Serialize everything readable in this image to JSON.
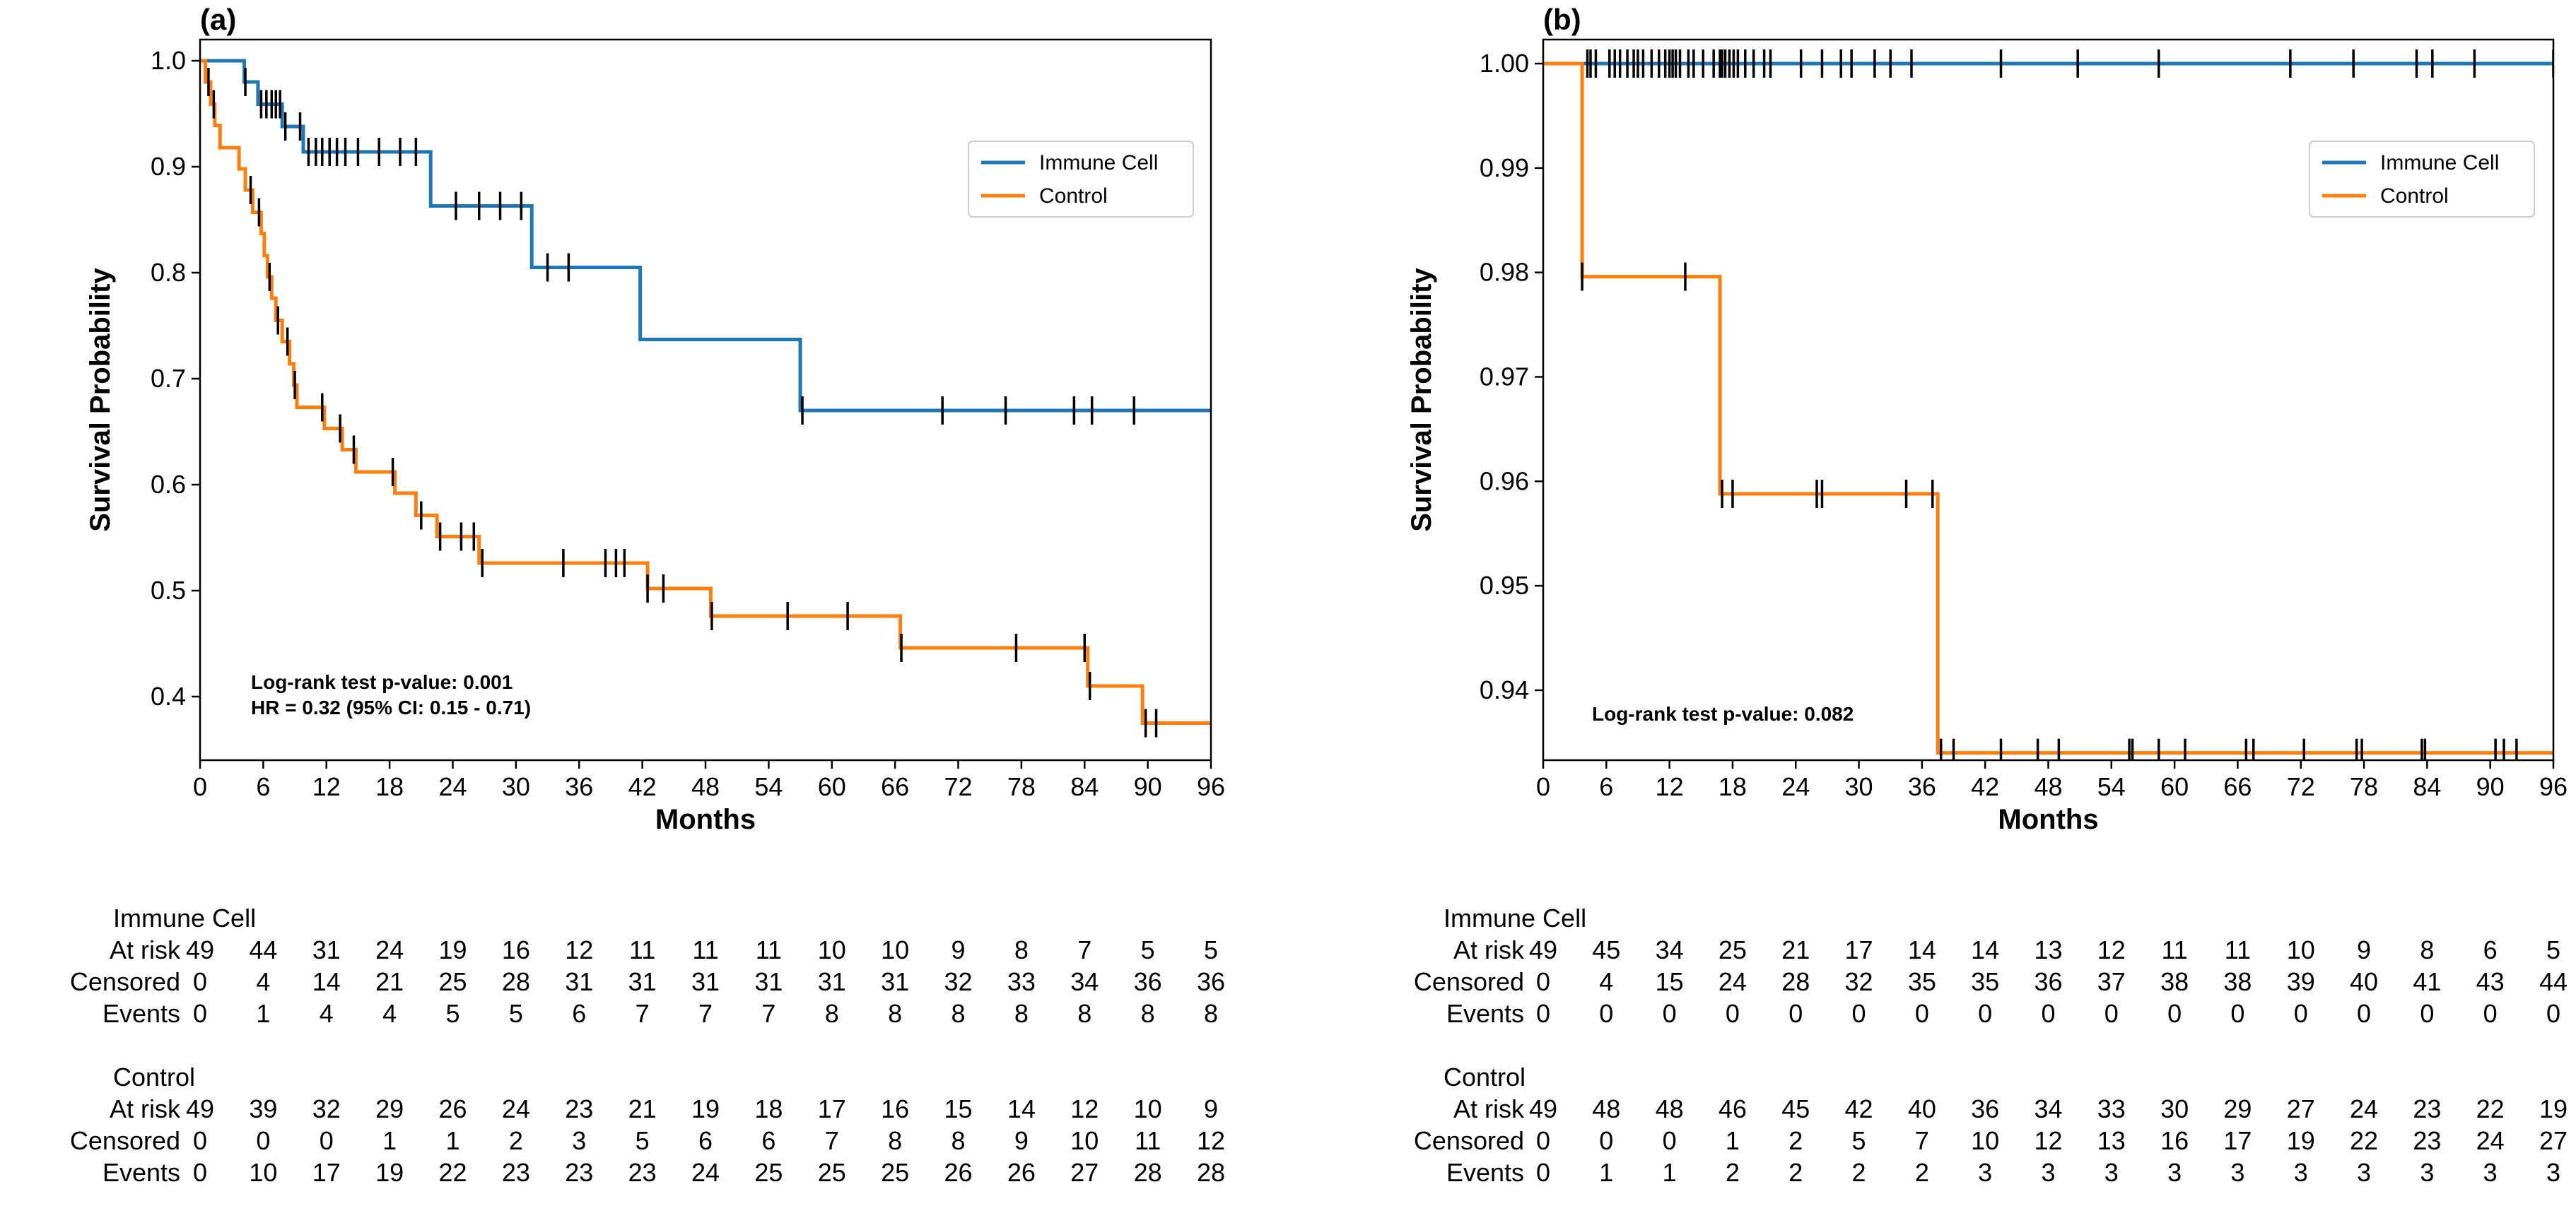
{
  "colors": {
    "immune": "#1f77b4",
    "control": "#ff7f0e",
    "censor": "#000000",
    "axis": "#000000"
  },
  "chart_data": [
    {
      "type": "line",
      "panel_label": "(a)",
      "xlabel": "Months",
      "ylabel": "Survival Probability",
      "xlim": [
        0,
        96
      ],
      "ylim": [
        0.34,
        1.02
      ],
      "xticks": [
        0,
        6,
        12,
        18,
        24,
        30,
        36,
        42,
        48,
        54,
        60,
        66,
        72,
        78,
        84,
        90,
        96
      ],
      "yticks": [
        0.4,
        0.5,
        0.6,
        0.7,
        0.8,
        0.9,
        1.0
      ],
      "ytick_labels": [
        "0.4",
        "0.5",
        "0.6",
        "0.7",
        "0.8",
        "0.9",
        "1.0"
      ],
      "legend": [
        "Immune Cell",
        "Control"
      ],
      "annotations": [
        "Log-rank test p-value: 0.001",
        "HR = 0.32 (95% CI: 0.15 - 0.71)"
      ],
      "series": [
        {
          "name": "Immune Cell",
          "steps": [
            [
              0,
              1.0
            ],
            [
              4.2,
              0.98
            ],
            [
              5.5,
              0.959
            ],
            [
              7.8,
              0.938
            ],
            [
              9.8,
              0.914
            ],
            [
              21.9,
              0.863
            ],
            [
              31.5,
              0.805
            ],
            [
              41.8,
              0.737
            ],
            [
              57,
              0.67
            ],
            [
              96,
              0.67
            ]
          ],
          "censor_times": [
            4.3,
            5.8,
            6.3,
            6.8,
            7.2,
            7.6,
            8.1,
            9.5,
            10.3,
            11.0,
            11.6,
            12.3,
            13.0,
            13.8,
            15.0,
            17.0,
            19.0,
            20.5,
            24.3,
            26.5,
            28.5,
            30.5,
            33.0,
            35.0,
            57.2,
            70.5,
            76.5,
            83.0,
            84.7,
            88.7
          ]
        },
        {
          "name": "Control",
          "steps": [
            [
              0,
              1.0
            ],
            [
              0.5,
              0.98
            ],
            [
              1.0,
              0.959
            ],
            [
              1.4,
              0.939
            ],
            [
              1.9,
              0.918
            ],
            [
              3.7,
              0.898
            ],
            [
              4.3,
              0.878
            ],
            [
              5.0,
              0.857
            ],
            [
              5.8,
              0.837
            ],
            [
              6.1,
              0.816
            ],
            [
              6.4,
              0.796
            ],
            [
              6.8,
              0.776
            ],
            [
              7.2,
              0.755
            ],
            [
              7.8,
              0.735
            ],
            [
              8.5,
              0.714
            ],
            [
              8.9,
              0.694
            ],
            [
              9.2,
              0.673
            ],
            [
              11.8,
              0.653
            ],
            [
              13.5,
              0.633
            ],
            [
              14.8,
              0.612
            ],
            [
              18.5,
              0.592
            ],
            [
              20.5,
              0.571
            ],
            [
              22.5,
              0.551
            ],
            [
              26.5,
              0.526
            ],
            [
              42.5,
              0.502
            ],
            [
              48.5,
              0.476
            ],
            [
              66.5,
              0.446
            ],
            [
              84.3,
              0.41
            ],
            [
              89.5,
              0.375
            ],
            [
              96,
              0.375
            ]
          ],
          "censor_times": [
            0.8,
            1.3,
            4.8,
            5.6,
            6.6,
            7.4,
            8.3,
            9.0,
            11.6,
            13.3,
            14.6,
            18.3,
            21.0,
            22.8,
            24.8,
            26.0,
            26.8,
            34.5,
            38.5,
            39.5,
            40.3,
            42.5,
            44.0,
            48.6,
            55.8,
            61.5,
            66.6,
            77.5,
            84.0,
            84.5,
            89.8,
            90.8
          ]
        }
      ],
      "risk_table": {
        "times": [
          "0",
          "6",
          "12",
          "18",
          "24",
          "30",
          "36",
          "42",
          "48",
          "54",
          "60",
          "66",
          "72",
          "78",
          "84",
          "90",
          "96"
        ],
        "groups": [
          {
            "name": "Immune Cell",
            "rows": [
              {
                "label": "At risk",
                "values": [
                  "49",
                  "44",
                  "31",
                  "24",
                  "19",
                  "16",
                  "12",
                  "11",
                  "11",
                  "11",
                  "10",
                  "10",
                  "9",
                  "8",
                  "7",
                  "5",
                  "5"
                ]
              },
              {
                "label": "Censored",
                "values": [
                  "0",
                  "4",
                  "14",
                  "21",
                  "25",
                  "28",
                  "31",
                  "31",
                  "31",
                  "31",
                  "31",
                  "31",
                  "32",
                  "33",
                  "34",
                  "36",
                  "36"
                ]
              },
              {
                "label": "Events",
                "values": [
                  "0",
                  "1",
                  "4",
                  "4",
                  "5",
                  "5",
                  "6",
                  "7",
                  "7",
                  "7",
                  "8",
                  "8",
                  "8",
                  "8",
                  "8",
                  "8",
                  "8"
                ]
              }
            ]
          },
          {
            "name": "Control",
            "rows": [
              {
                "label": "At risk",
                "values": [
                  "49",
                  "39",
                  "32",
                  "29",
                  "26",
                  "24",
                  "23",
                  "21",
                  "19",
                  "18",
                  "17",
                  "16",
                  "15",
                  "14",
                  "12",
                  "10",
                  "9"
                ]
              },
              {
                "label": "Censored",
                "values": [
                  "0",
                  "0",
                  "0",
                  "1",
                  "1",
                  "2",
                  "3",
                  "5",
                  "6",
                  "6",
                  "7",
                  "8",
                  "8",
                  "9",
                  "10",
                  "11",
                  "12"
                ]
              },
              {
                "label": "Events",
                "values": [
                  "0",
                  "10",
                  "17",
                  "19",
                  "22",
                  "23",
                  "23",
                  "23",
                  "24",
                  "25",
                  "25",
                  "25",
                  "26",
                  "26",
                  "27",
                  "28",
                  "28"
                ]
              }
            ]
          }
        ]
      }
    },
    {
      "type": "line",
      "panel_label": "(b)",
      "xlabel": "Months",
      "ylabel": "Survival Probability",
      "xlim": [
        0,
        96
      ],
      "ylim": [
        0.9333,
        1.0023
      ],
      "xticks": [
        0,
        6,
        12,
        18,
        24,
        30,
        36,
        42,
        48,
        54,
        60,
        66,
        72,
        78,
        84,
        90,
        96
      ],
      "yticks": [
        0.94,
        0.95,
        0.96,
        0.97,
        0.98,
        0.99,
        1.0
      ],
      "ytick_labels": [
        "0.94",
        "0.95",
        "0.96",
        "0.97",
        "0.98",
        "0.99",
        "1.00"
      ],
      "legend": [
        "Immune Cell",
        "Control"
      ],
      "annotations": [
        "Log-rank test p-value: 0.082"
      ],
      "series": [
        {
          "name": "Immune Cell",
          "steps": [
            [
              0,
              1.0
            ],
            [
              96,
              1.0
            ]
          ],
          "censor_times": [
            4.2,
            4.5,
            5.0,
            6.3,
            6.8,
            7.3,
            8.0,
            8.6,
            9.0,
            9.5,
            10.3,
            11.0,
            11.6,
            12.0,
            12.3,
            12.6,
            13.0,
            13.8,
            14.3,
            15.2,
            16.2,
            16.8,
            17.0,
            17.3,
            17.7,
            18.1,
            18.5,
            19.2,
            20.0,
            21.0,
            21.6,
            24.5,
            26.5,
            28.3,
            29.3,
            31.5,
            33.0,
            35.0,
            43.5,
            50.8,
            58.5,
            71.0,
            77.0,
            83.0,
            84.5,
            88.5,
            96
          ]
        },
        {
          "name": "Control",
          "steps": [
            [
              0,
              1.0
            ],
            [
              3.7,
              0.9796
            ],
            [
              16.8,
              0.9588
            ],
            [
              37.5,
              0.934
            ],
            [
              96,
              0.934
            ]
          ],
          "censor_times": [
            3.7,
            13.5,
            17.0,
            18.0,
            26.0,
            26.5,
            34.5,
            37.0,
            37.8,
            39.0,
            43.5,
            47.0,
            49.0,
            55.7,
            56.0,
            58.5,
            61.0,
            66.8,
            67.5,
            72.3,
            77.3,
            77.8,
            83.5,
            83.8,
            90.5,
            91.3,
            92.5
          ]
        }
      ],
      "risk_table": {
        "times": [
          "0",
          "6",
          "12",
          "18",
          "24",
          "30",
          "36",
          "42",
          "48",
          "54",
          "60",
          "66",
          "72",
          "78",
          "84",
          "90",
          "96"
        ],
        "groups": [
          {
            "name": "Immune Cell",
            "rows": [
              {
                "label": "At risk",
                "values": [
                  "49",
                  "45",
                  "34",
                  "25",
                  "21",
                  "17",
                  "14",
                  "14",
                  "13",
                  "12",
                  "11",
                  "11",
                  "10",
                  "9",
                  "8",
                  "6",
                  "5"
                ]
              },
              {
                "label": "Censored",
                "values": [
                  "0",
                  "4",
                  "15",
                  "24",
                  "28",
                  "32",
                  "35",
                  "35",
                  "36",
                  "37",
                  "38",
                  "38",
                  "39",
                  "40",
                  "41",
                  "43",
                  "44"
                ]
              },
              {
                "label": "Events",
                "values": [
                  "0",
                  "0",
                  "0",
                  "0",
                  "0",
                  "0",
                  "0",
                  "0",
                  "0",
                  "0",
                  "0",
                  "0",
                  "0",
                  "0",
                  "0",
                  "0",
                  "0"
                ]
              }
            ]
          },
          {
            "name": "Control",
            "rows": [
              {
                "label": "At risk",
                "values": [
                  "49",
                  "48",
                  "48",
                  "46",
                  "45",
                  "42",
                  "40",
                  "36",
                  "34",
                  "33",
                  "30",
                  "29",
                  "27",
                  "24",
                  "23",
                  "22",
                  "19"
                ]
              },
              {
                "label": "Censored",
                "values": [
                  "0",
                  "0",
                  "0",
                  "1",
                  "2",
                  "5",
                  "7",
                  "10",
                  "12",
                  "13",
                  "16",
                  "17",
                  "19",
                  "22",
                  "23",
                  "24",
                  "27"
                ]
              },
              {
                "label": "Events",
                "values": [
                  "0",
                  "1",
                  "1",
                  "2",
                  "2",
                  "2",
                  "2",
                  "3",
                  "3",
                  "3",
                  "3",
                  "3",
                  "3",
                  "3",
                  "3",
                  "3",
                  "3"
                ]
              }
            ]
          }
        ]
      }
    }
  ]
}
